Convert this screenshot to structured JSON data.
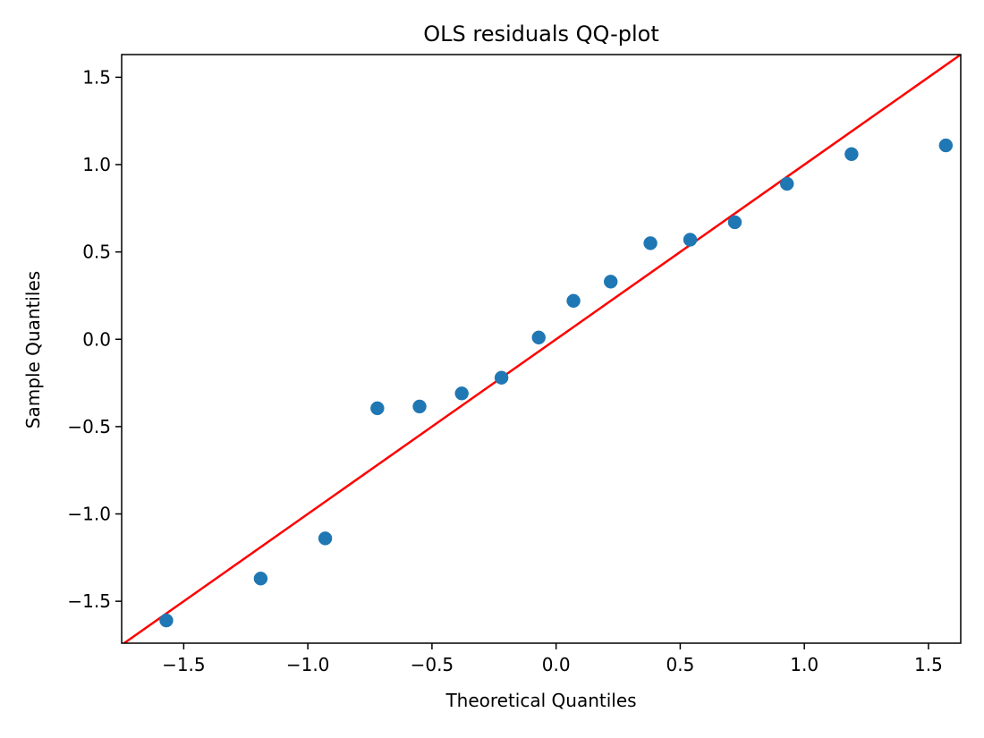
{
  "chart_data": {
    "type": "scatter",
    "title": "OLS residuals QQ-plot",
    "xlabel": "Theoretical Quantiles",
    "ylabel": "Sample Quantiles",
    "xlim": [
      -1.75,
      1.63
    ],
    "ylim": [
      -1.74,
      1.63
    ],
    "xticks": [
      -1.5,
      -1.0,
      -0.5,
      0.0,
      0.5,
      1.0,
      1.5
    ],
    "xtick_labels": [
      "−1.5",
      "−1.0",
      "−0.5",
      "0.0",
      "0.5",
      "1.0",
      "1.5"
    ],
    "yticks": [
      -1.5,
      -1.0,
      -0.5,
      0.0,
      0.5,
      1.0,
      1.5
    ],
    "ytick_labels": [
      "−1.5",
      "−1.0",
      "−0.5",
      "0.0",
      "0.5",
      "1.0",
      "1.5"
    ],
    "grid": false,
    "legend": false,
    "series": [
      {
        "x": [
          -1.57,
          -1.19,
          -0.93,
          -0.72,
          -0.55,
          -0.38,
          -0.22,
          -0.07,
          0.07,
          0.22,
          0.38,
          0.54,
          0.72,
          0.93,
          1.19,
          1.57
        ],
        "y": [
          -1.61,
          -1.37,
          -1.14,
          -0.395,
          -0.385,
          -0.31,
          -0.22,
          0.01,
          0.22,
          0.33,
          0.55,
          0.57,
          0.67,
          0.89,
          1.06,
          1.11
        ],
        "color": "#1f77b4"
      }
    ],
    "reference_line": {
      "slope": 1,
      "intercept": 0,
      "color": "#ff0000"
    }
  }
}
